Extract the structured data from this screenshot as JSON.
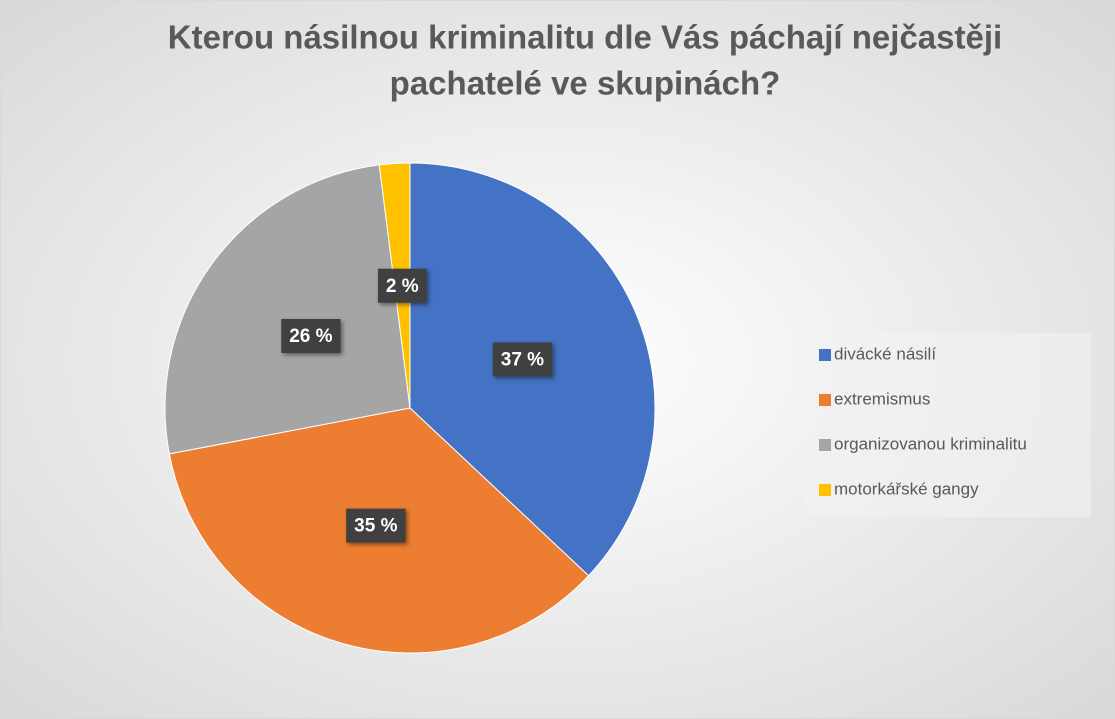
{
  "chart_data": {
    "type": "pie",
    "title": [
      "Kterou násilnou kriminalitu dle Vás páchají nejčastěji",
      "pachatelé ve skupinách?"
    ],
    "categories": [
      "divácké násilí",
      "extremismus",
      "organizovanou kriminalitu",
      "motorkářské gangy"
    ],
    "values": [
      37,
      35,
      26,
      2
    ],
    "value_labels": [
      "37 %",
      "35 %",
      "26 %",
      "2 %"
    ],
    "colors": [
      "#4472c4",
      "#ed7d31",
      "#a5a5a5",
      "#ffc000"
    ],
    "legend": "right"
  }
}
